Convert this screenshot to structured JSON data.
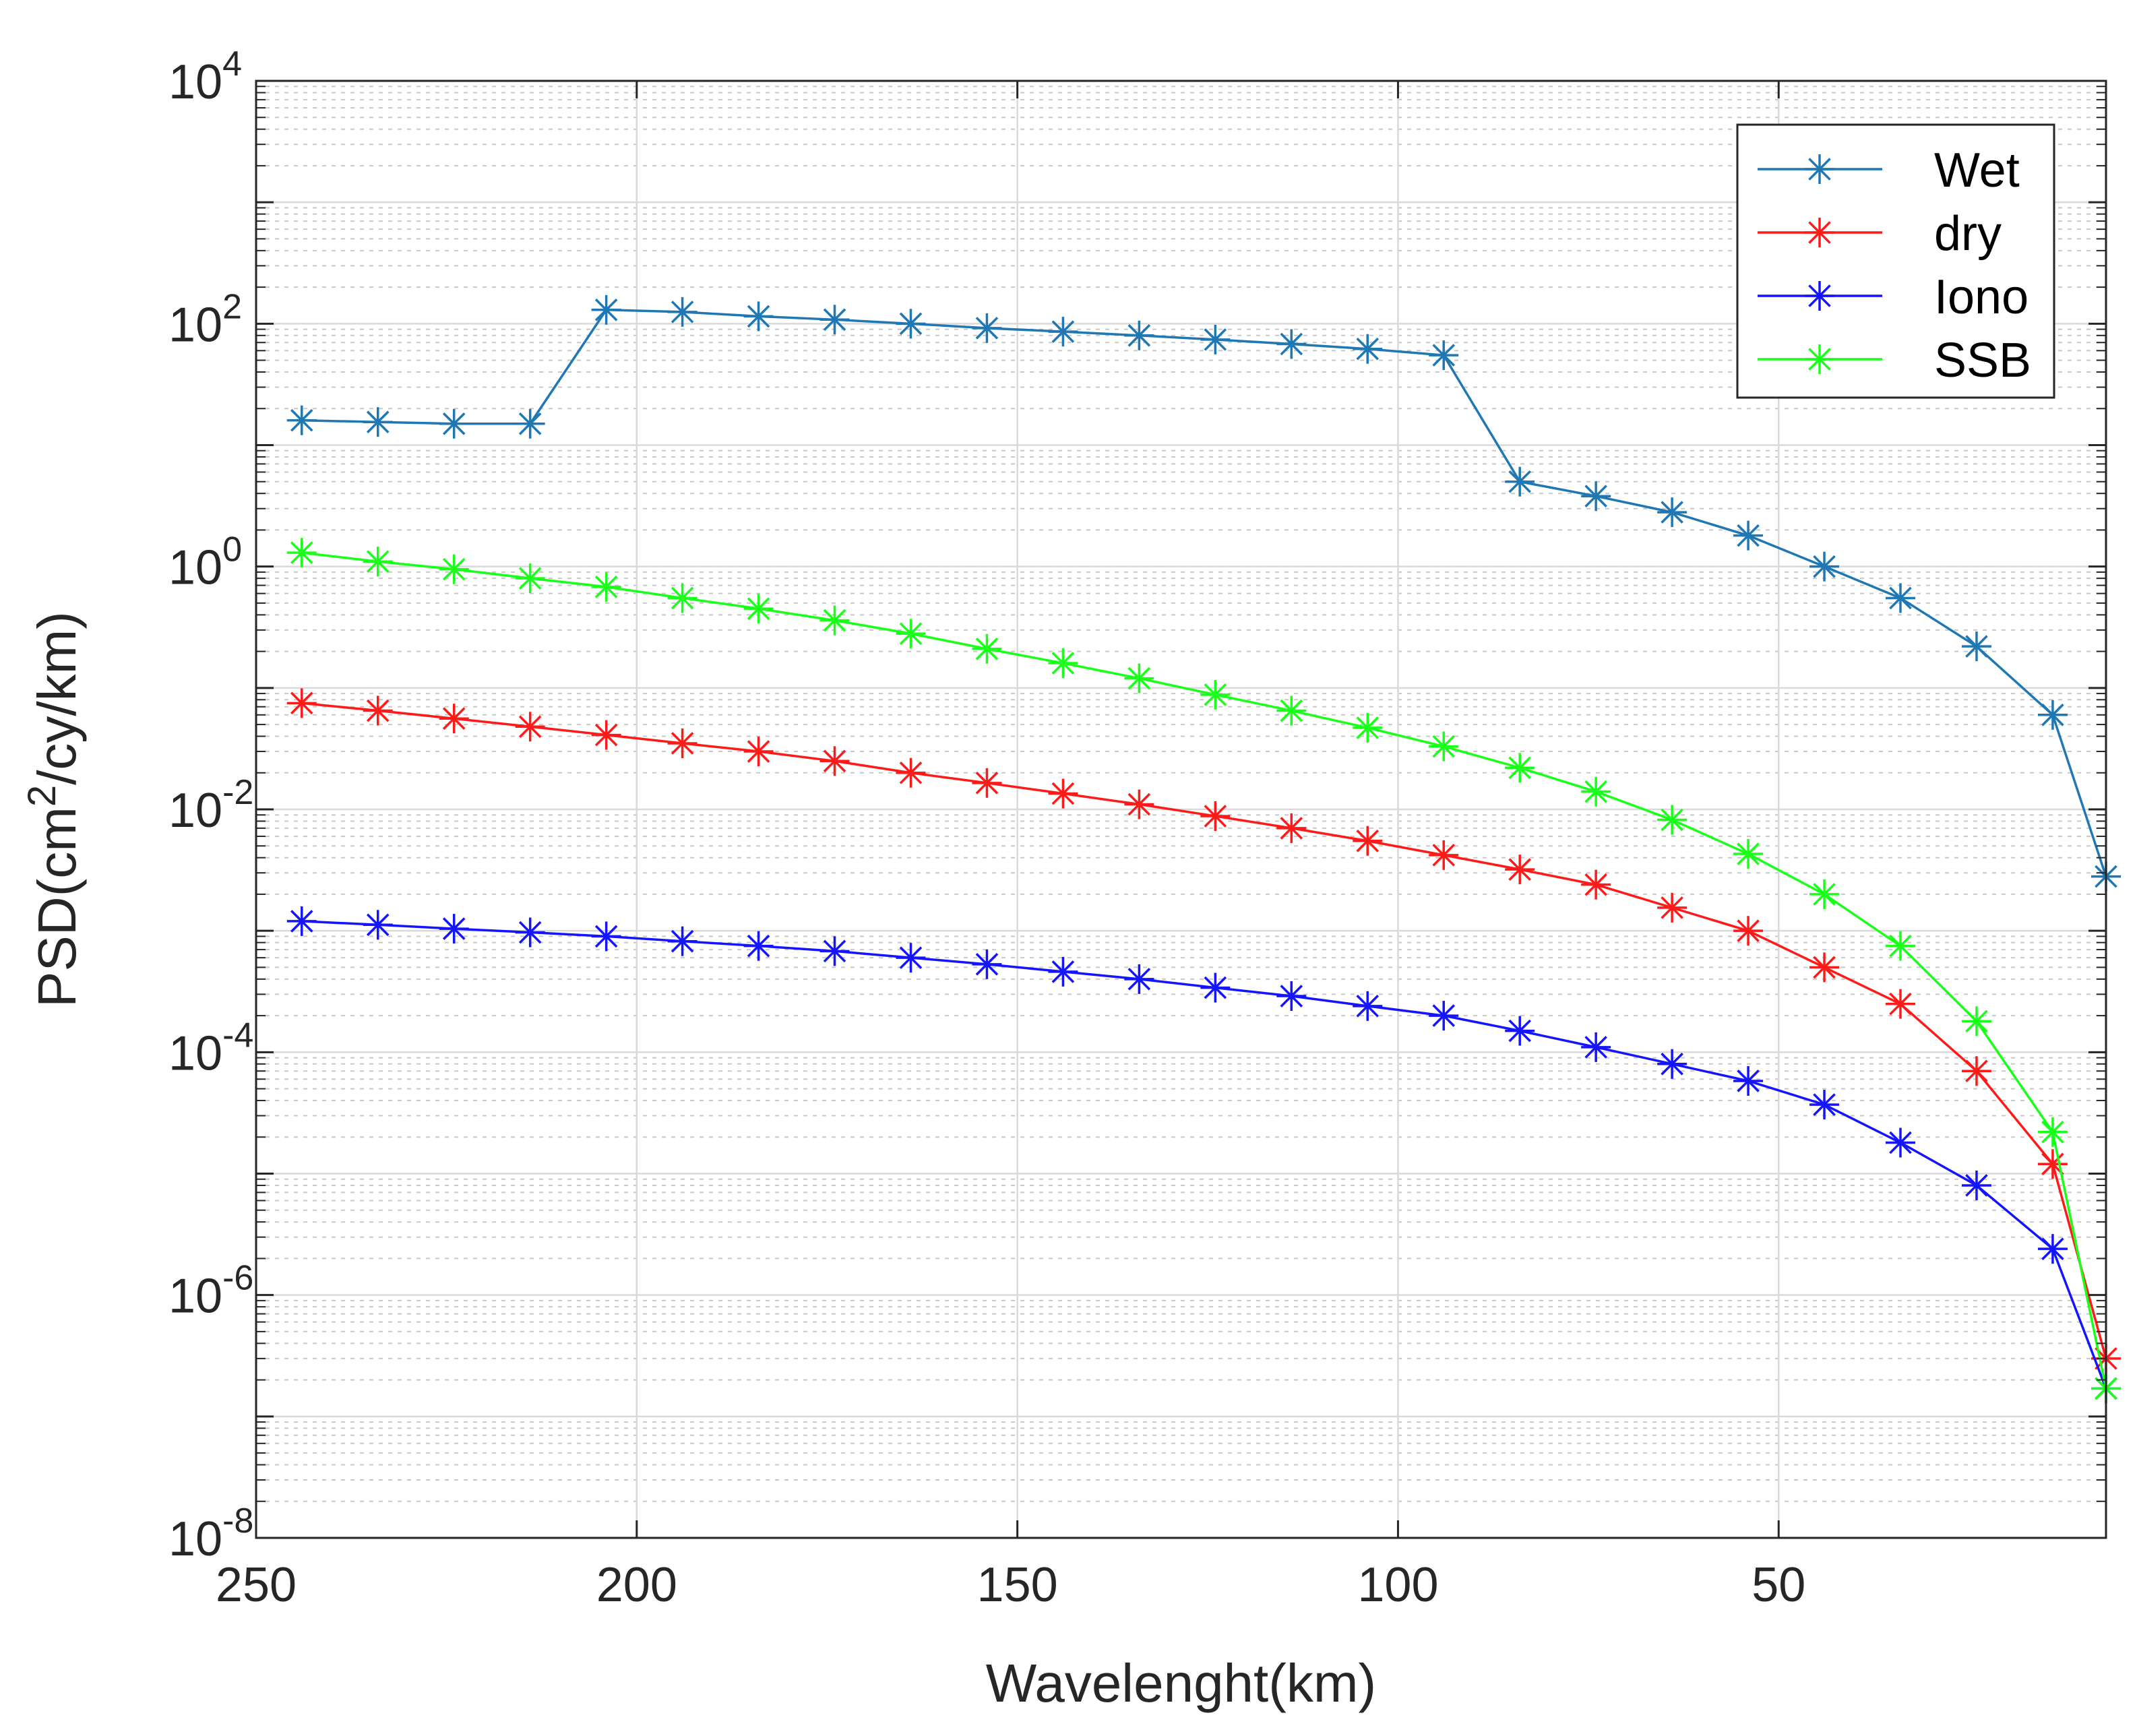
{
  "chart_data": {
    "type": "line",
    "title": "",
    "xlabel": "Wavelenght(km)",
    "ylabel": "PSD(cm²/cy/km)",
    "ylabel_parts": {
      "pre": "PSD(cm",
      "sup": "2",
      "post": "/cy/km)"
    },
    "xscale": "linear",
    "yscale": "log",
    "xlim": [
      250,
      7
    ],
    "x_reversed": true,
    "ylim": [
      1e-08,
      10000
    ],
    "grid": "major and minor",
    "legend_position": "top-right",
    "x_ticks": [
      {
        "value": 250,
        "label": "250"
      },
      {
        "value": 200,
        "label": "200"
      },
      {
        "value": 150,
        "label": "150"
      },
      {
        "value": 100,
        "label": "100"
      },
      {
        "value": 50,
        "label": "50"
      }
    ],
    "y_ticks": [
      {
        "value": 10000,
        "base": "10",
        "exp": "4"
      },
      {
        "value": 100,
        "base": "10",
        "exp": "2"
      },
      {
        "value": 1,
        "base": "10",
        "exp": "0"
      },
      {
        "value": 0.01,
        "base": "10",
        "exp": "-2"
      },
      {
        "value": 0.0001,
        "base": "10",
        "exp": "-4"
      },
      {
        "value": 1e-06,
        "base": "10",
        "exp": "-6"
      },
      {
        "value": 1e-08,
        "base": "10",
        "exp": "-8"
      }
    ],
    "x": [
      244,
      234,
      224,
      214,
      204,
      194,
      184,
      174,
      164,
      154,
      144,
      134,
      124,
      114,
      104,
      94,
      84,
      74,
      64,
      54,
      44,
      34,
      24,
      14,
      7
    ],
    "series": [
      {
        "name": "Wet",
        "color": "#1f77b4",
        "values": [
          16,
          15.5,
          15,
          15,
          130,
          125,
          115,
          108,
          100,
          92,
          86,
          80,
          74,
          68,
          62,
          55,
          5,
          3.8,
          2.8,
          1.8,
          1.0,
          0.55,
          0.22,
          0.06,
          0.0028
        ]
      },
      {
        "name": "dry",
        "color": "#ff1a1a",
        "values": [
          0.075,
          0.065,
          0.056,
          0.048,
          0.041,
          0.035,
          0.03,
          0.025,
          0.02,
          0.0165,
          0.0135,
          0.011,
          0.0088,
          0.007,
          0.0055,
          0.0042,
          0.0032,
          0.0024,
          0.00155,
          0.001,
          0.0005,
          0.00025,
          7e-05,
          1.2e-05,
          3e-07
        ]
      },
      {
        "name": "Iono",
        "color": "#1414ff",
        "values": [
          0.0012,
          0.00112,
          0.00104,
          0.00097,
          0.0009,
          0.00082,
          0.00075,
          0.00068,
          0.0006,
          0.00053,
          0.00046,
          0.0004,
          0.00034,
          0.00029,
          0.00024,
          0.0002,
          0.00015,
          0.00011,
          8e-05,
          5.8e-05,
          3.7e-05,
          1.8e-05,
          8e-06,
          2.4e-06,
          1.7e-07
        ]
      },
      {
        "name": "SSB",
        "color": "#19ff19",
        "values": [
          1.3,
          1.1,
          0.95,
          0.8,
          0.68,
          0.55,
          0.45,
          0.36,
          0.28,
          0.21,
          0.16,
          0.12,
          0.088,
          0.065,
          0.047,
          0.033,
          0.022,
          0.014,
          0.0082,
          0.0043,
          0.002,
          0.00075,
          0.00018,
          2.2e-05,
          1.7e-07
        ]
      }
    ]
  }
}
